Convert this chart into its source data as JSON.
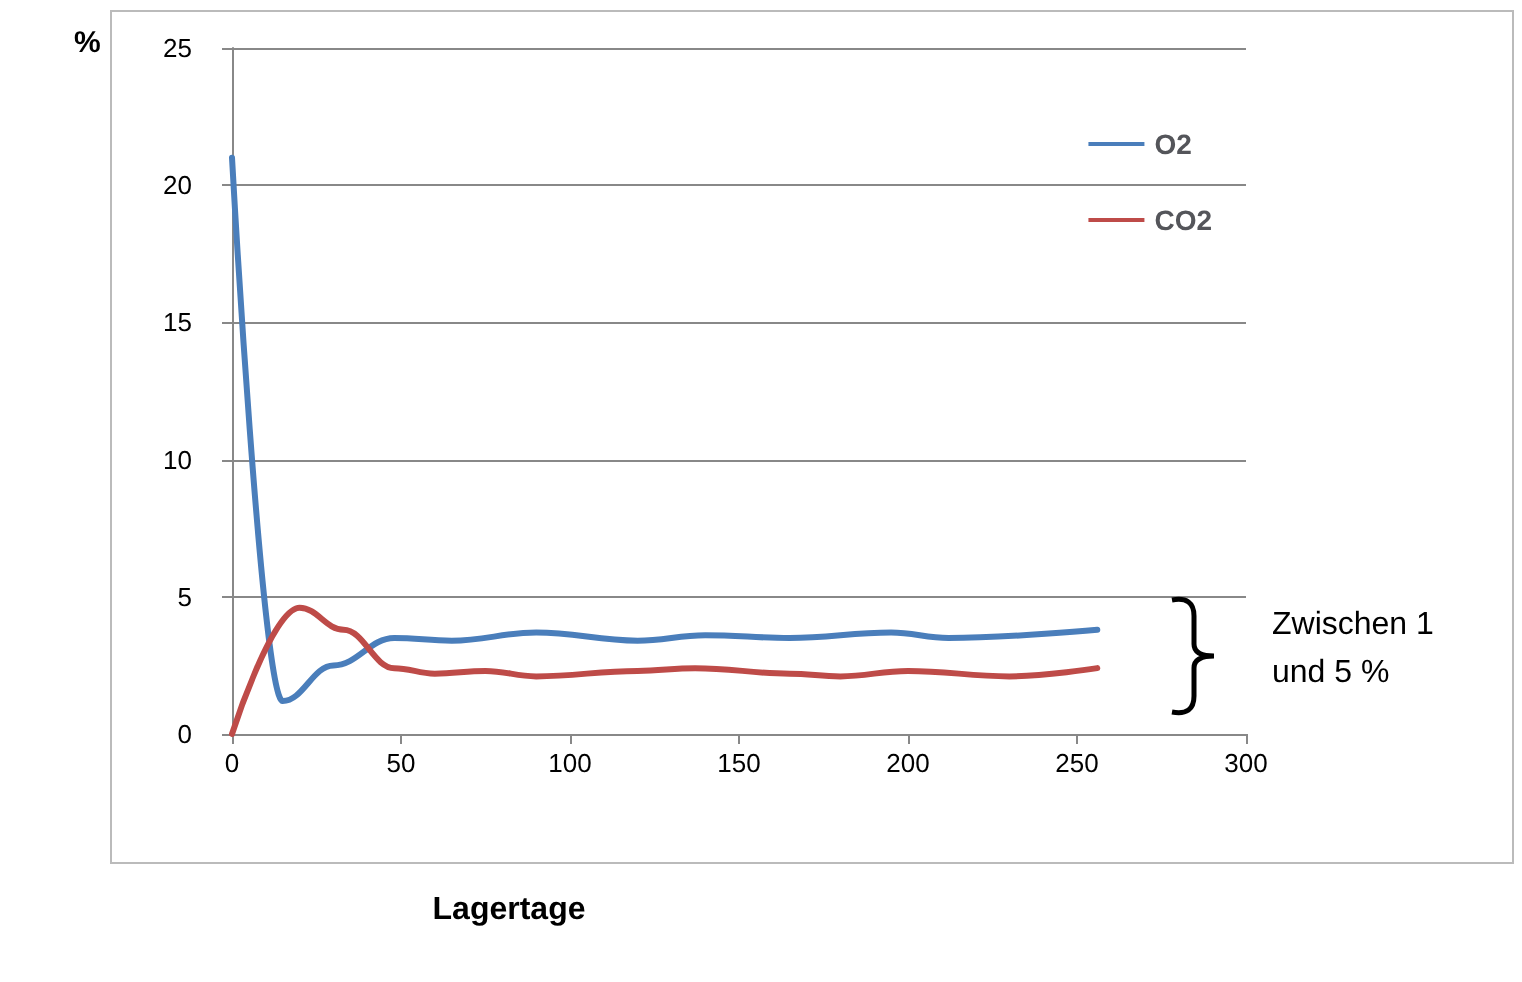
{
  "chart_data": {
    "type": "line",
    "xlabel": "Lagertage",
    "ylabel": "%",
    "xlim": [
      0,
      300
    ],
    "xticks": [
      0,
      50,
      100,
      150,
      200,
      250,
      300
    ],
    "ylim": [
      0,
      25
    ],
    "yticks": [
      0,
      5,
      10,
      15,
      20,
      25
    ],
    "grid": "y",
    "legend": "top right",
    "marker": "none",
    "line_style": "solid",
    "annotations": [
      "Zwischen 1\nund 5 %"
    ],
    "series": [
      {
        "name": "O2",
        "color": "#4a7ebb",
        "x": [
          0,
          15,
          30,
          48,
          65,
          90,
          120,
          140,
          165,
          195,
          212,
          256
        ],
        "values": [
          21,
          1.2,
          2.5,
          3.5,
          3.4,
          3.7,
          3.4,
          3.6,
          3.5,
          3.7,
          3.5,
          3.8
        ]
      },
      {
        "name": "CO2",
        "color": "#be4b48",
        "x": [
          0,
          20,
          33,
          48,
          60,
          75,
          90,
          120,
          137,
          165,
          180,
          200,
          230,
          256
        ],
        "values": [
          0,
          4.6,
          3.8,
          2.4,
          2.2,
          2.3,
          2.1,
          2.3,
          2.4,
          2.2,
          2.1,
          2.3,
          2.1,
          2.4
        ]
      }
    ]
  }
}
